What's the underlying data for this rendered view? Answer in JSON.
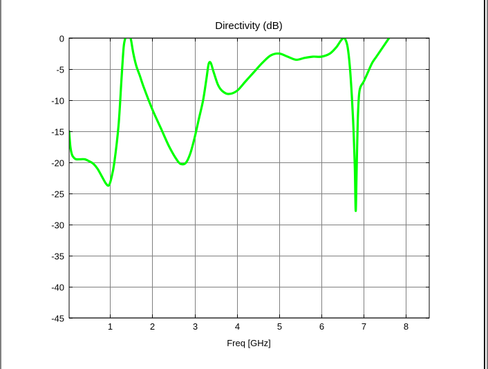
{
  "chart_data": {
    "type": "line",
    "title": "Directivity (dB)",
    "xlabel": "Freq [GHz]",
    "ylabel": "",
    "xlim": [
      0.03,
      8.55
    ],
    "ylim": [
      -45,
      0
    ],
    "xticks": [
      1,
      2,
      3,
      4,
      5,
      6,
      7,
      8
    ],
    "xtick_labels": [
      "1",
      "2",
      "3",
      "4",
      "5",
      "6",
      "7",
      "8"
    ],
    "yticks": [
      0,
      -5,
      -10,
      -15,
      -20,
      -25,
      -30,
      -35,
      -40,
      -45
    ],
    "ytick_labels": [
      "0",
      "-5",
      "-10",
      "-15",
      "-20",
      "-25",
      "-30",
      "-35",
      "-40",
      "-45"
    ],
    "grid": true,
    "legend": "none",
    "series": [
      {
        "color": "#00ff00",
        "x": [
          0.03,
          0.06,
          0.1,
          0.15,
          0.2,
          0.3,
          0.4,
          0.5,
          0.6,
          0.7,
          0.8,
          0.9,
          0.97,
          1.03,
          1.1,
          1.2,
          1.27,
          1.32,
          1.36,
          1.38,
          1.42,
          1.47,
          1.5,
          1.55,
          1.62,
          1.7,
          1.8,
          2.0,
          2.2,
          2.4,
          2.6,
          2.7,
          2.8,
          2.9,
          3.0,
          3.1,
          3.2,
          3.28,
          3.33,
          3.38,
          3.45,
          3.55,
          3.65,
          3.8,
          4.0,
          4.2,
          4.4,
          4.6,
          4.8,
          5.0,
          5.2,
          5.4,
          5.6,
          5.8,
          6.0,
          6.2,
          6.35,
          6.45,
          6.52,
          6.57,
          6.62,
          6.67,
          6.72,
          6.76,
          6.79,
          6.81,
          6.83,
          6.86,
          6.9,
          7.0,
          7.1,
          7.2,
          7.3,
          7.4,
          7.5,
          7.6
        ],
        "y": [
          -15.0,
          -17.5,
          -18.8,
          -19.3,
          -19.5,
          -19.5,
          -19.5,
          -19.8,
          -20.2,
          -21.0,
          -22.2,
          -23.4,
          -23.7,
          -22.5,
          -20.0,
          -14.0,
          -6.5,
          -1.5,
          0.0,
          0.5,
          0.5,
          0.3,
          -0.5,
          -2.5,
          -4.5,
          -6.0,
          -8.0,
          -11.5,
          -14.5,
          -17.5,
          -19.8,
          -20.3,
          -20.0,
          -18.5,
          -16.0,
          -13.0,
          -10.0,
          -6.5,
          -4.2,
          -4.0,
          -5.5,
          -7.5,
          -8.5,
          -9.0,
          -8.5,
          -7.0,
          -5.5,
          -4.0,
          -2.8,
          -2.5,
          -3.0,
          -3.5,
          -3.2,
          -3.0,
          -3.0,
          -2.5,
          -1.5,
          -0.5,
          0.0,
          -0.3,
          -1.5,
          -4.5,
          -9.5,
          -15.0,
          -21.0,
          -27.8,
          -22.0,
          -13.0,
          -8.5,
          -7.0,
          -5.5,
          -4.0,
          -3.0,
          -2.0,
          -1.0,
          0.0
        ]
      }
    ]
  }
}
